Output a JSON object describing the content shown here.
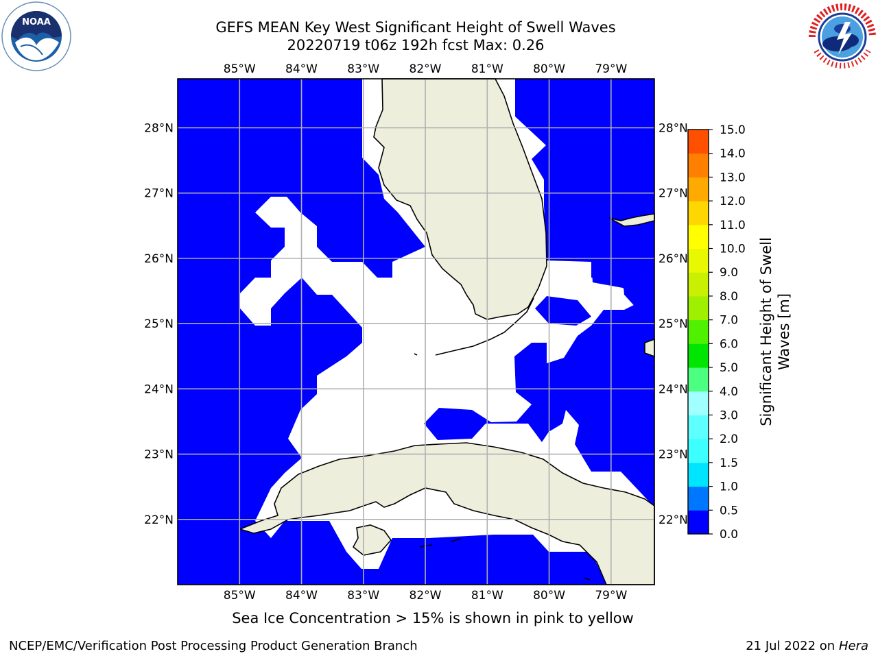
{
  "title": {
    "line1": "GEFS MEAN Key West Significant Height of Swell Waves",
    "line2": "20220719 t06z 192h fcst   Max: 0.26"
  },
  "logos": {
    "left": "noaa-logo",
    "right": "national-weather-service-logo"
  },
  "map": {
    "lon_labels": [
      "85°W",
      "84°W",
      "83°W",
      "82°W",
      "81°W",
      "80°W",
      "79°W"
    ],
    "lat_labels": [
      "28°N",
      "27°N",
      "26°N",
      "25°N",
      "24°N",
      "23°N",
      "22°N"
    ],
    "lon_range": [
      -86.0,
      -78.3
    ],
    "lat_range": [
      21.0,
      28.75
    ],
    "grid": true,
    "ocean_color": "#0000ff",
    "land_color": "#eeeedd",
    "missing_color": "#ffffff"
  },
  "colorbar": {
    "title_line1": "Significant Height of Swell",
    "title_line2": "Waves [m]",
    "ticks": [
      "0.0",
      "0.5",
      "1.0",
      "1.5",
      "2.0",
      "3.0",
      "4.0",
      "5.0",
      "6.0",
      "7.0",
      "8.0",
      "9.0",
      "10.0",
      "11.0",
      "12.0",
      "13.0",
      "14.0",
      "15.0"
    ],
    "colors": [
      "#0000ff",
      "#0077ff",
      "#00e5ff",
      "#3dffff",
      "#5effff",
      "#a0ffff",
      "#4dff80",
      "#00e600",
      "#4ff000",
      "#9ff000",
      "#c8f000",
      "#e8f800",
      "#ffff00",
      "#ffd700",
      "#ffaa00",
      "#ff8000",
      "#ff5000",
      "#ff2000",
      "#ff0000"
    ]
  },
  "caption": "Sea Ice Concentration > 15% is shown in pink to yellow",
  "footer": {
    "left": "NCEP/EMC/Verification Post Processing Product Generation Branch",
    "right_date": "21 Jul 2022 on ",
    "right_host": "Hera"
  }
}
